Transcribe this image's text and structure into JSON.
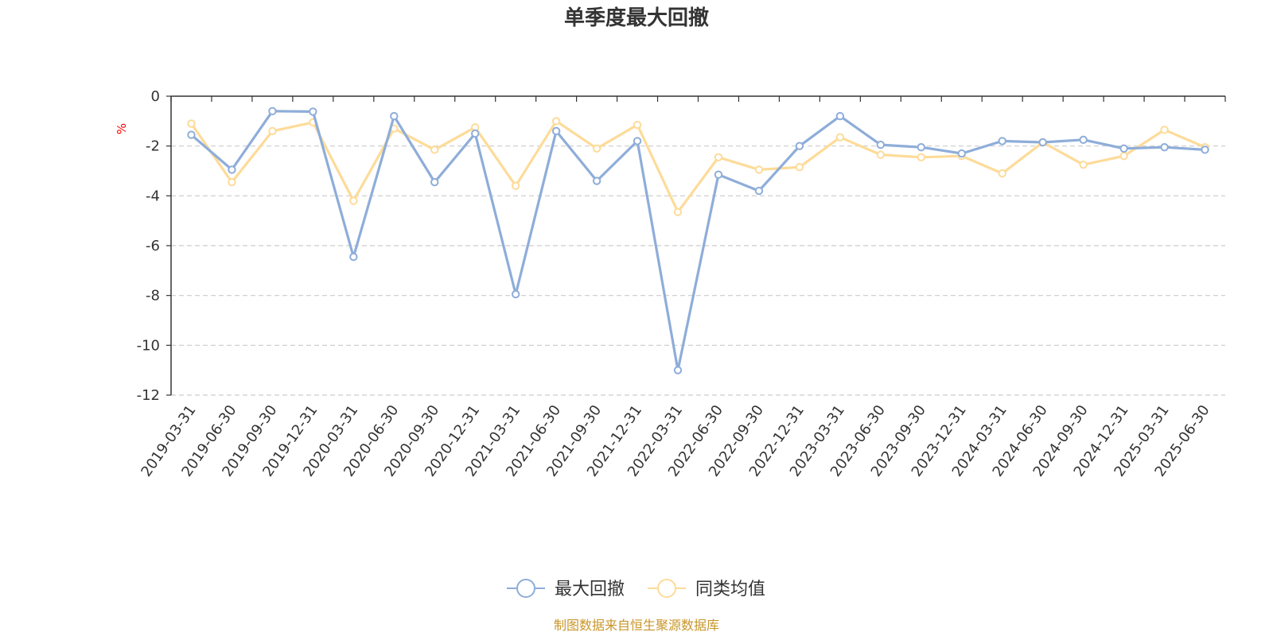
{
  "chart_data": {
    "type": "line",
    "title": "单季度最大回撤",
    "ylabel": "%",
    "ylim": [
      -12,
      0
    ],
    "yticks": [
      0,
      -2,
      -4,
      -6,
      -8,
      -10,
      -12
    ],
    "grid": true,
    "legend_position": "bottom-center",
    "categories": [
      "2019-03-31",
      "2019-06-30",
      "2019-09-30",
      "2019-12-31",
      "2020-03-31",
      "2020-06-30",
      "2020-09-30",
      "2020-12-31",
      "2021-03-31",
      "2021-06-30",
      "2021-09-30",
      "2021-12-31",
      "2022-03-31",
      "2022-06-30",
      "2022-09-30",
      "2022-12-31",
      "2023-03-31",
      "2023-06-30",
      "2023-09-30",
      "2023-12-31",
      "2024-03-31",
      "2024-06-30",
      "2024-09-30",
      "2024-12-31",
      "2025-03-31",
      "2025-06-30"
    ],
    "series": [
      {
        "name": "最大回撤",
        "color": "#8eadd9",
        "values": [
          -1.55,
          -2.95,
          -0.6,
          -0.62,
          -6.45,
          -0.8,
          -3.45,
          -1.5,
          -7.95,
          -1.4,
          -3.4,
          -1.8,
          -11.0,
          -3.15,
          -3.8,
          -2.0,
          -0.8,
          -1.95,
          -2.05,
          -2.3,
          -1.8,
          -1.85,
          -1.75,
          -2.1,
          -2.05,
          -2.15
        ]
      },
      {
        "name": "同类均值",
        "color": "#fddb99",
        "values": [
          -1.1,
          -3.45,
          -1.4,
          -1.05,
          -4.2,
          -1.3,
          -2.15,
          -1.25,
          -3.6,
          -1.0,
          -2.1,
          -1.15,
          -4.65,
          -2.45,
          -2.95,
          -2.85,
          -1.65,
          -2.35,
          -2.45,
          -2.4,
          -3.1,
          -1.85,
          -2.75,
          -2.4,
          -1.35,
          -2.05
        ]
      }
    ]
  },
  "source_text": "制图数据来自恒生聚源数据库",
  "colors": {
    "axis": "#333333",
    "grid": "#cccccc",
    "unit": "#ff0000",
    "source": "#c8962a"
  }
}
